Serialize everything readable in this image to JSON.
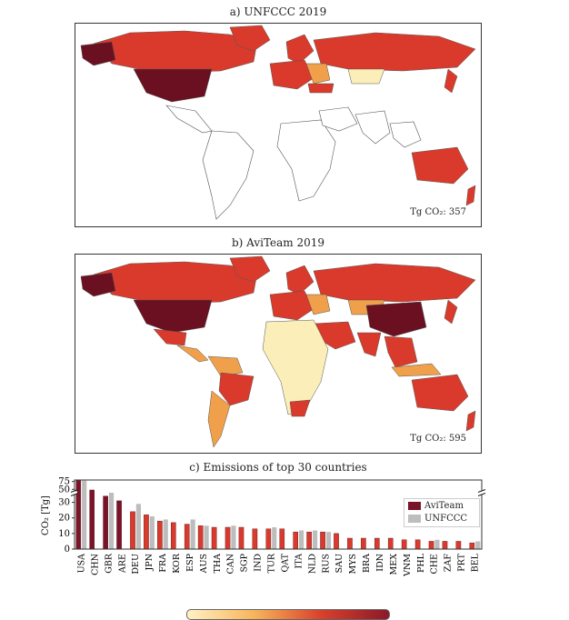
{
  "panels": [
    {
      "title": "a) UNFCCC 2019",
      "total_label": "Tg CO₂: 357"
    },
    {
      "title": "b) AviTeam 2019",
      "total_label": "Tg CO₂: 595"
    }
  ],
  "colors": {
    "aviteam": "#7a1428",
    "unfccc": "#bdbdbd",
    "bar_fill": "#d93a2b",
    "map_dark": "#6b1020",
    "map_red": "#d93a2b",
    "map_orange": "#f0a04a",
    "map_yellow": "#fbeeb8",
    "land_empty": "#ffffff"
  },
  "chart_data": {
    "type": "bar",
    "title": "c) Emissions of top 30 countries",
    "ylabel": "CO₂ [Tg]",
    "categories": [
      "USA",
      "CHN",
      "GBR",
      "ARE",
      "DEU",
      "JPN",
      "FRA",
      "KOR",
      "ESP",
      "AUS",
      "THA",
      "CAN",
      "SGP",
      "IND",
      "TUR",
      "QAT",
      "ITA",
      "NLD",
      "RUS",
      "SAU",
      "MYS",
      "BRA",
      "IDN",
      "MEX",
      "VNM",
      "PHL",
      "CHE",
      "ZAF",
      "PRT",
      "BEL"
    ],
    "series": [
      {
        "name": "AviTeam",
        "values": [
          78,
          48,
          34,
          31,
          24,
          22,
          18,
          17,
          16,
          15,
          14,
          14,
          14,
          13,
          13,
          13,
          11,
          11,
          11,
          10,
          7,
          7,
          7,
          7,
          6,
          6,
          5,
          5,
          5,
          4
        ]
      },
      {
        "name": "UNFCCC",
        "values": [
          78,
          null,
          36,
          null,
          29,
          21,
          19,
          null,
          19,
          15,
          null,
          15,
          null,
          null,
          14,
          null,
          12,
          12,
          11,
          null,
          null,
          null,
          null,
          null,
          null,
          null,
          6,
          null,
          null,
          5
        ]
      }
    ],
    "yticks": [
      0,
      10,
      20,
      30,
      50,
      75
    ],
    "ylim": [
      0,
      80
    ],
    "axis_break": [
      35,
      45
    ],
    "legend_position": "right"
  }
}
